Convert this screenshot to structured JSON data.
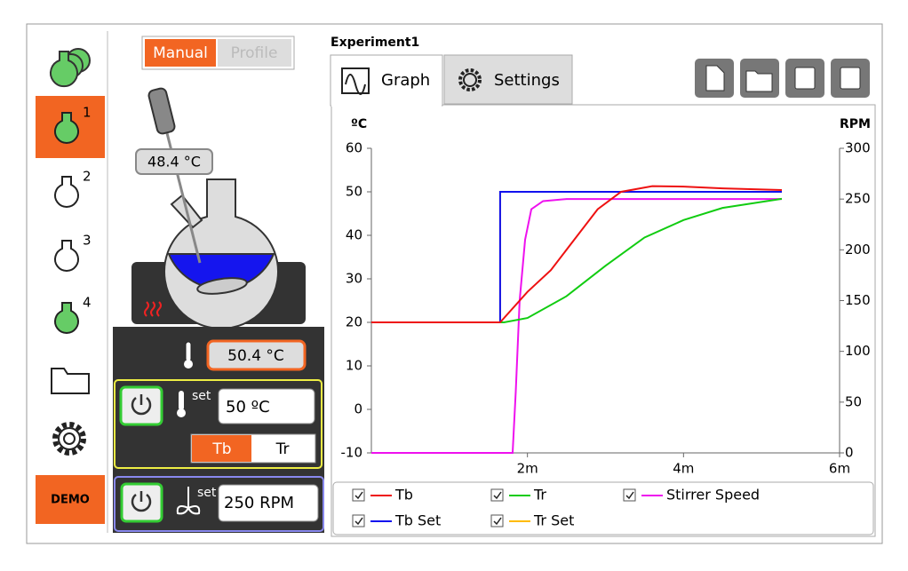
{
  "sidebar": {
    "vessels": [
      "1",
      "2",
      "3",
      "4"
    ],
    "demo": "DEMO"
  },
  "mode_toggle": {
    "manual": "Manual",
    "profile": "Profile"
  },
  "probe_reading": "48.4 °C",
  "controls": {
    "jacket_temp": "50.4 °C",
    "temp_set_label": "set",
    "temp_set": "50 ºC",
    "tb": "Tb",
    "tr": "Tr",
    "stir_set_label": "set",
    "stir_set": "250 RPM"
  },
  "experiment": "Experiment1",
  "tabs": [
    "Graph",
    "Settings"
  ],
  "chart_data": {
    "type": "line",
    "y_label": "ºC",
    "y2_label": "RPM",
    "xlim": [
      0,
      6
    ],
    "xticks": [
      {
        "value": 2,
        "label": "2m"
      },
      {
        "value": 4,
        "label": "4m"
      },
      {
        "value": 6,
        "label": "6m"
      }
    ],
    "ylim": [
      -10,
      60
    ],
    "yticks": [
      -10,
      0,
      10,
      20,
      30,
      40,
      50,
      60
    ],
    "y2lim": [
      0,
      300
    ],
    "y2ticks": [
      0,
      50,
      100,
      150,
      200,
      250,
      300
    ],
    "series": [
      {
        "name": "Tb",
        "color": "#ee1111",
        "x": [
          0,
          1.65,
          2.0,
          2.3,
          2.6,
          2.9,
          3.2,
          3.6,
          4.0,
          4.5,
          5.26
        ],
        "values": [
          20,
          20,
          27,
          32,
          39,
          46,
          50,
          51.3,
          51.2,
          50.8,
          50.4
        ]
      },
      {
        "name": "Tr",
        "color": "#11cc11",
        "x": [
          0,
          1.7,
          2.0,
          2.5,
          3.0,
          3.5,
          4.0,
          4.5,
          5.26
        ],
        "values": [
          20,
          20,
          21,
          26,
          33,
          39.5,
          43.5,
          46.3,
          48.4
        ]
      },
      {
        "name": "Stirrer Speed",
        "color": "#ee11ee",
        "axis": "y2",
        "x": [
          0,
          1.81,
          1.85,
          1.9,
          1.97,
          2.05,
          2.2,
          2.5,
          5.26
        ],
        "values": [
          0,
          0,
          60,
          150,
          210,
          240,
          248,
          250,
          250
        ]
      },
      {
        "name": "Tb Set",
        "color": "#1111ee",
        "x": [
          0,
          1.65,
          1.65,
          5.26
        ],
        "values": [
          20,
          20,
          50,
          50
        ]
      },
      {
        "name": "Tr Set",
        "color": "#ffbb00",
        "x": [
          0,
          1.65,
          1.65,
          5.26
        ],
        "values": [
          20,
          20,
          50,
          50
        ]
      }
    ]
  }
}
